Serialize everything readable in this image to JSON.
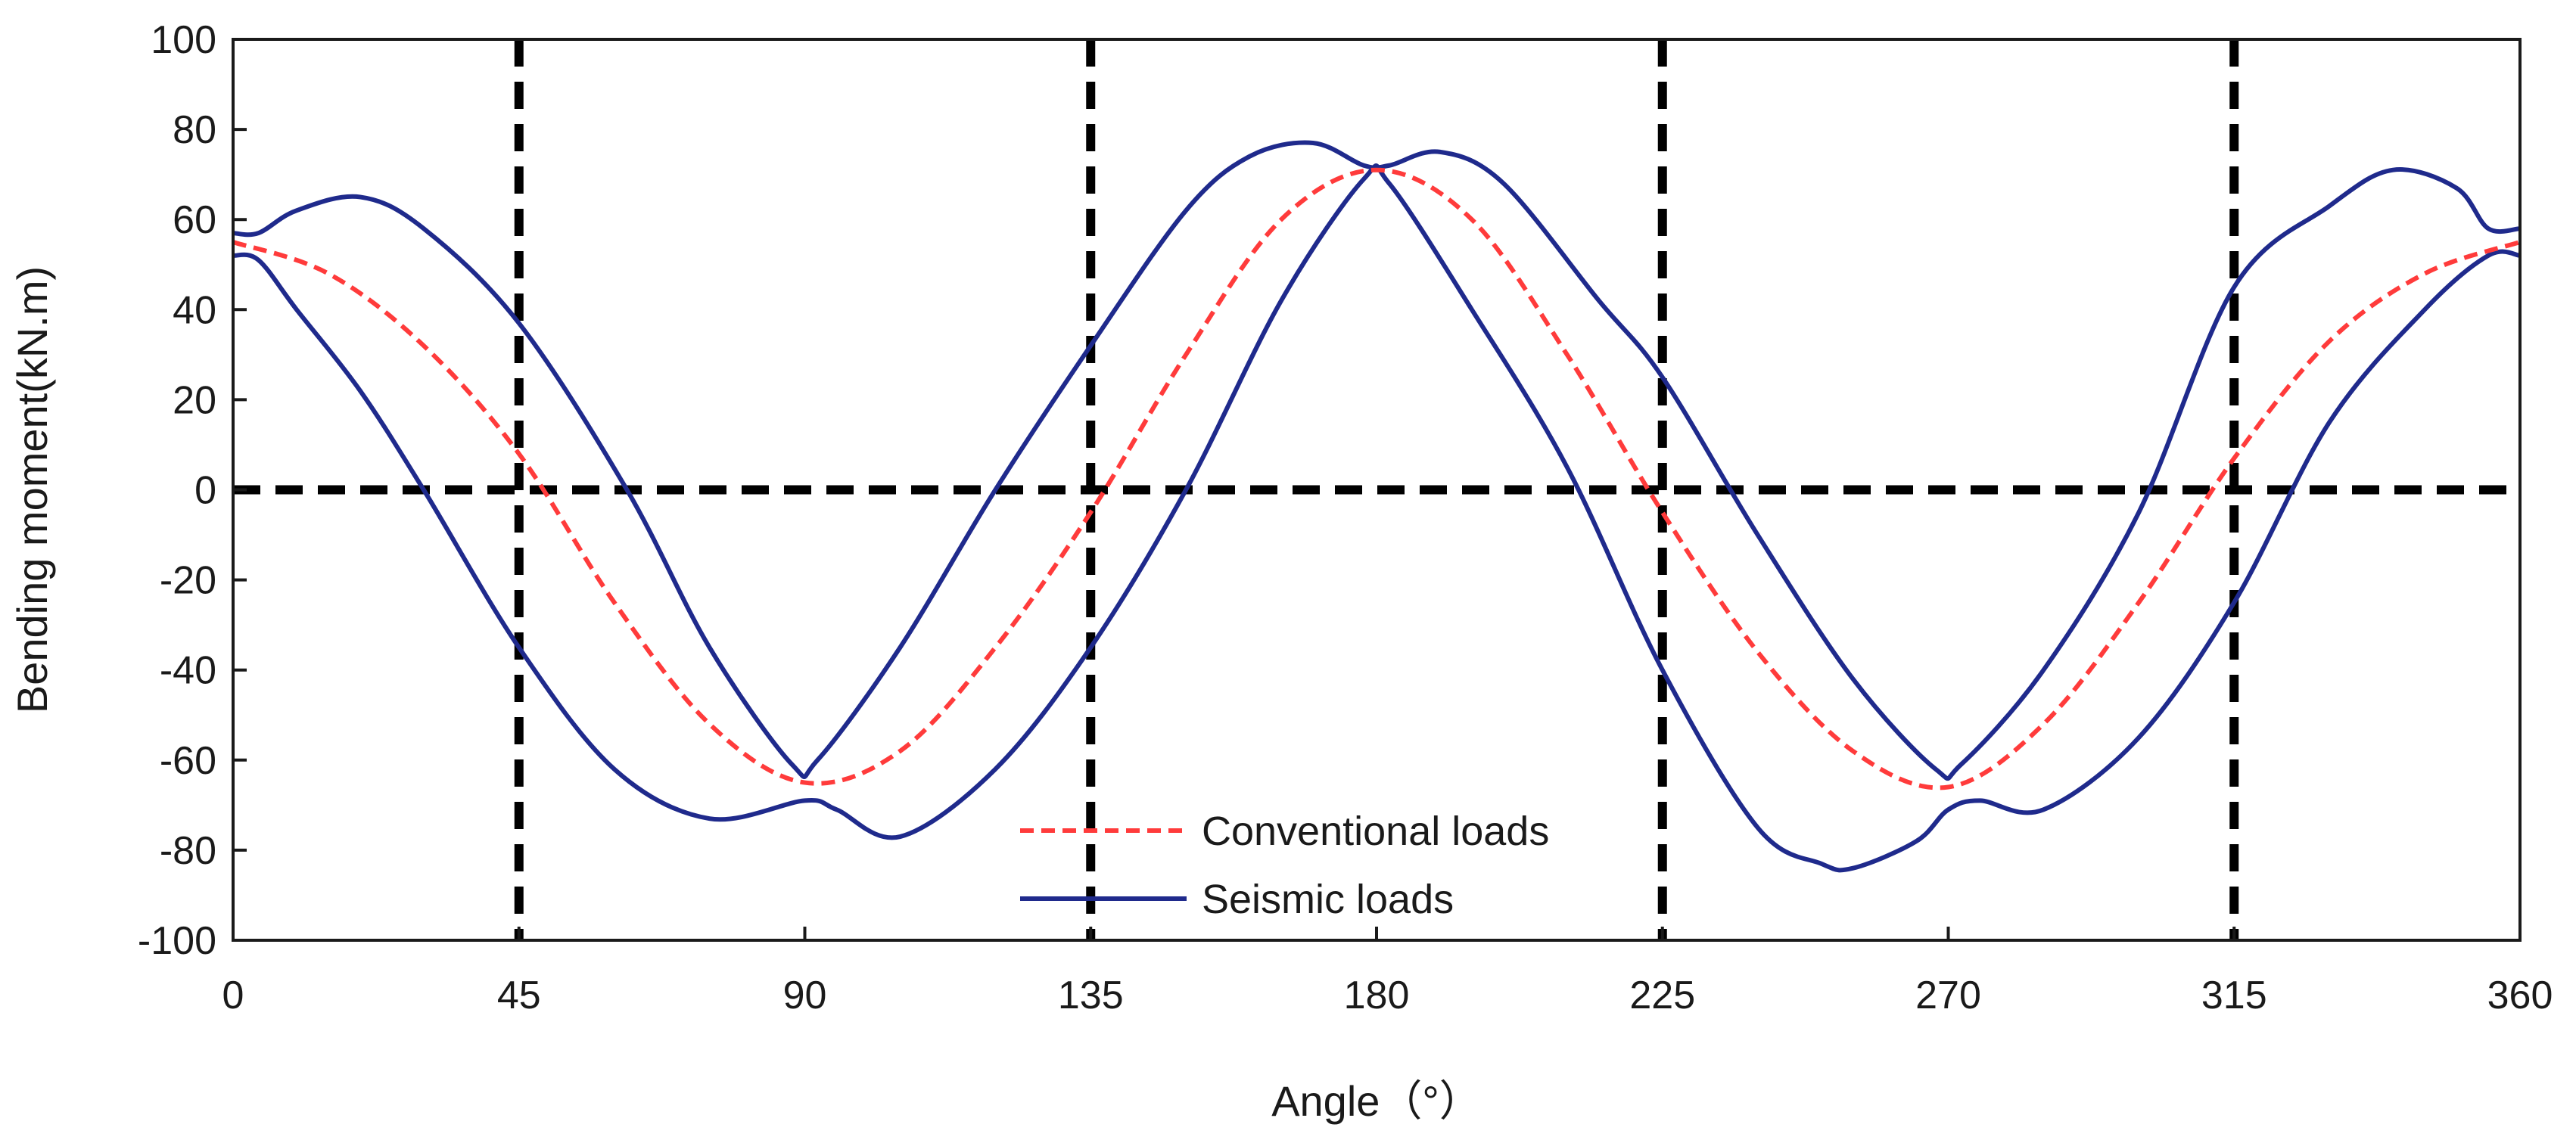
{
  "chart_data": {
    "type": "line",
    "title": "",
    "xlabel": "Angle（°）",
    "ylabel": "Bending moment(kN.m)",
    "xlim": [
      0,
      360
    ],
    "ylim": [
      -100,
      100
    ],
    "xticks": [
      0,
      45,
      90,
      135,
      180,
      225,
      270,
      315,
      360
    ],
    "yticks": [
      -100,
      -80,
      -60,
      -40,
      -20,
      0,
      20,
      40,
      60,
      80,
      100
    ],
    "grid": false,
    "reference_lines": {
      "vertical_x": [
        45,
        135,
        225,
        315
      ],
      "horizontal_y": [
        0
      ],
      "style": "dashed",
      "color": "#000000"
    },
    "legend": {
      "position": "bottom-center",
      "entries": [
        {
          "label": "Conventional loads",
          "color": "#ff3b3b",
          "style": "dashed"
        },
        {
          "label": "Seismic loads",
          "color": "#1f2a8c",
          "style": "solid"
        }
      ]
    },
    "series": [
      {
        "name": "Conventional loads",
        "color": "#ff3b3b",
        "style": "dashed",
        "x": [
          0,
          15,
          30,
          45,
          60,
          75,
          90,
          105,
          120,
          135,
          150,
          165,
          180,
          195,
          210,
          225,
          240,
          255,
          270,
          285,
          300,
          315,
          330,
          345,
          360
        ],
        "y": [
          55,
          48,
          32,
          8,
          -25,
          -52,
          -65,
          -58,
          -35,
          -5,
          30,
          60,
          71,
          60,
          30,
          -5,
          -36,
          -58,
          -66,
          -52,
          -25,
          7,
          33,
          48,
          55
        ]
      },
      {
        "name": "Seismic loads",
        "color": "#1f2a8c",
        "style": "solid",
        "x": [
          0,
          4,
          10,
          20,
          30,
          45,
          62,
          75,
          88,
          92,
          105,
          120,
          135,
          150,
          160,
          170,
          178,
          182,
          190,
          200,
          215,
          225,
          240,
          255,
          268,
          272,
          285,
          300,
          315,
          330,
          340,
          350,
          355,
          360
        ],
        "y": [
          57,
          57,
          62,
          65,
          58,
          37,
          0,
          -35,
          -61,
          -60,
          -35,
          0,
          32,
          62,
          74,
          77,
          72,
          72,
          75,
          68,
          42,
          25,
          -10,
          -42,
          -62,
          -61,
          -40,
          -5,
          45,
          63,
          71,
          67,
          58,
          58
        ]
      },
      {
        "name": "",
        "color": "#1f2a8c",
        "style": "solid",
        "x": [
          0,
          4,
          10,
          20,
          30,
          45,
          60,
          75,
          90,
          95,
          105,
          120,
          135,
          150,
          165,
          178,
          182,
          195,
          210,
          225,
          240,
          250,
          255,
          265,
          270,
          275,
          285,
          300,
          315,
          330,
          345,
          355,
          360
        ],
        "y": [
          52,
          51,
          40,
          22,
          0,
          -35,
          -62,
          -73,
          -69,
          -71,
          -77,
          -62,
          -35,
          0,
          42,
          69,
          68,
          40,
          5,
          -40,
          -75,
          -83,
          -84,
          -78,
          -71,
          -69,
          -71,
          -55,
          -25,
          15,
          40,
          52,
          52
        ]
      }
    ]
  }
}
